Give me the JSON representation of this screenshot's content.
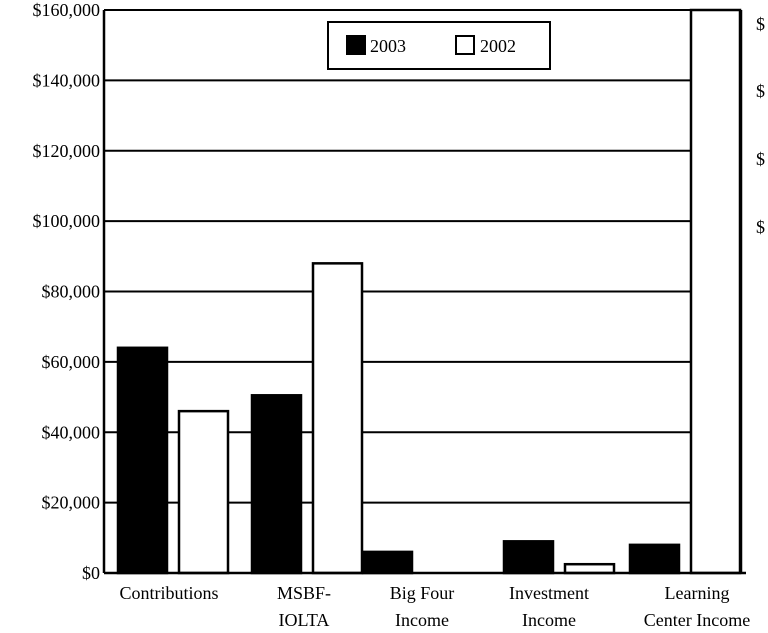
{
  "chart_data": {
    "type": "bar",
    "categories": [
      [
        "Contributions"
      ],
      [
        "MSBF-",
        "IOLTA"
      ],
      [
        "Big Four",
        "Income"
      ],
      [
        "Investment",
        "Income"
      ],
      [
        "Learning",
        "Center Income"
      ]
    ],
    "series": [
      {
        "name": "2003",
        "color": "#000000",
        "values": [
          64000,
          50500,
          6000,
          9000,
          8000
        ]
      },
      {
        "name": "2002",
        "color": "#ffffff",
        "values": [
          46000,
          88000,
          0,
          2500,
          160000
        ]
      }
    ],
    "ylim": [
      0,
      160000
    ],
    "yticks": [
      0,
      20000,
      40000,
      60000,
      80000,
      100000,
      120000,
      140000,
      160000
    ],
    "ytick_labels": [
      "$0",
      "$20,000",
      "$40,000",
      "$60,000",
      "$80,000",
      "$100,000",
      "$120,000",
      "$140,000",
      "$160,000"
    ],
    "right_edge_labels": [
      "$",
      "$",
      "$",
      "$"
    ],
    "grid": true,
    "legend_position": "top-center",
    "title": "",
    "xlabel": "",
    "ylabel": ""
  }
}
